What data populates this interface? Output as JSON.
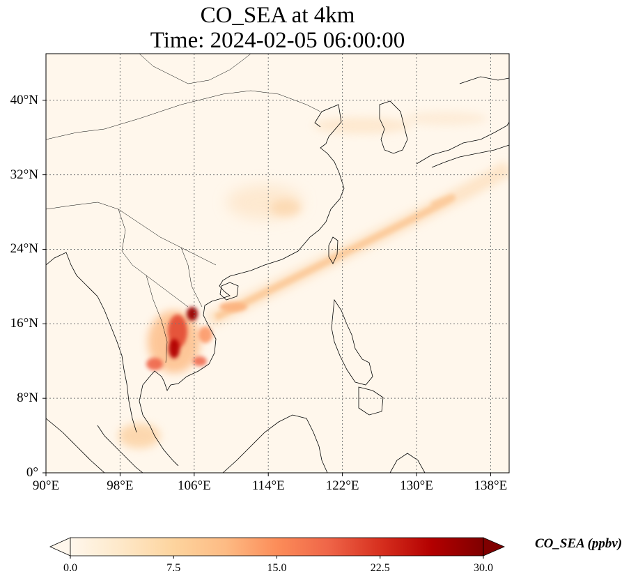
{
  "title_line1": "CO_SEA at 4km",
  "title_line2": "Time: 2024-02-05 06:00:00",
  "map": {
    "projection": "PlateCarree",
    "lon_range": [
      90,
      140
    ],
    "lat_range": [
      0,
      45
    ],
    "gridlines": "dotted",
    "lat_ticks": [
      {
        "value": 0,
        "label": "0°"
      },
      {
        "value": 8,
        "label": "8°N"
      },
      {
        "value": 16,
        "label": "16°N"
      },
      {
        "value": 24,
        "label": "24°N"
      },
      {
        "value": 32,
        "label": "32°N"
      },
      {
        "value": 40,
        "label": "40°N"
      }
    ],
    "lon_ticks": [
      {
        "value": 90,
        "label": "90°E"
      },
      {
        "value": 98,
        "label": "98°E"
      },
      {
        "value": 106,
        "label": "106°E"
      },
      {
        "value": 114,
        "label": "114°E"
      },
      {
        "value": 122,
        "label": "122°E"
      },
      {
        "value": 130,
        "label": "130°E"
      },
      {
        "value": 138,
        "label": "138°E"
      }
    ]
  },
  "colorbar": {
    "label": "CO_SEA (ppbv)",
    "colormap": "OrRd",
    "extend": "both",
    "range": [
      0,
      30
    ],
    "ticks": [
      "0.0",
      "7.5",
      "15.0",
      "22.5",
      "30.0"
    ],
    "colors": [
      "#fff7ec",
      "#fee8c8",
      "#fdd49e",
      "#fdbb84",
      "#fc8d59",
      "#ef6548",
      "#d7301f",
      "#b30000",
      "#7f0000"
    ]
  }
}
